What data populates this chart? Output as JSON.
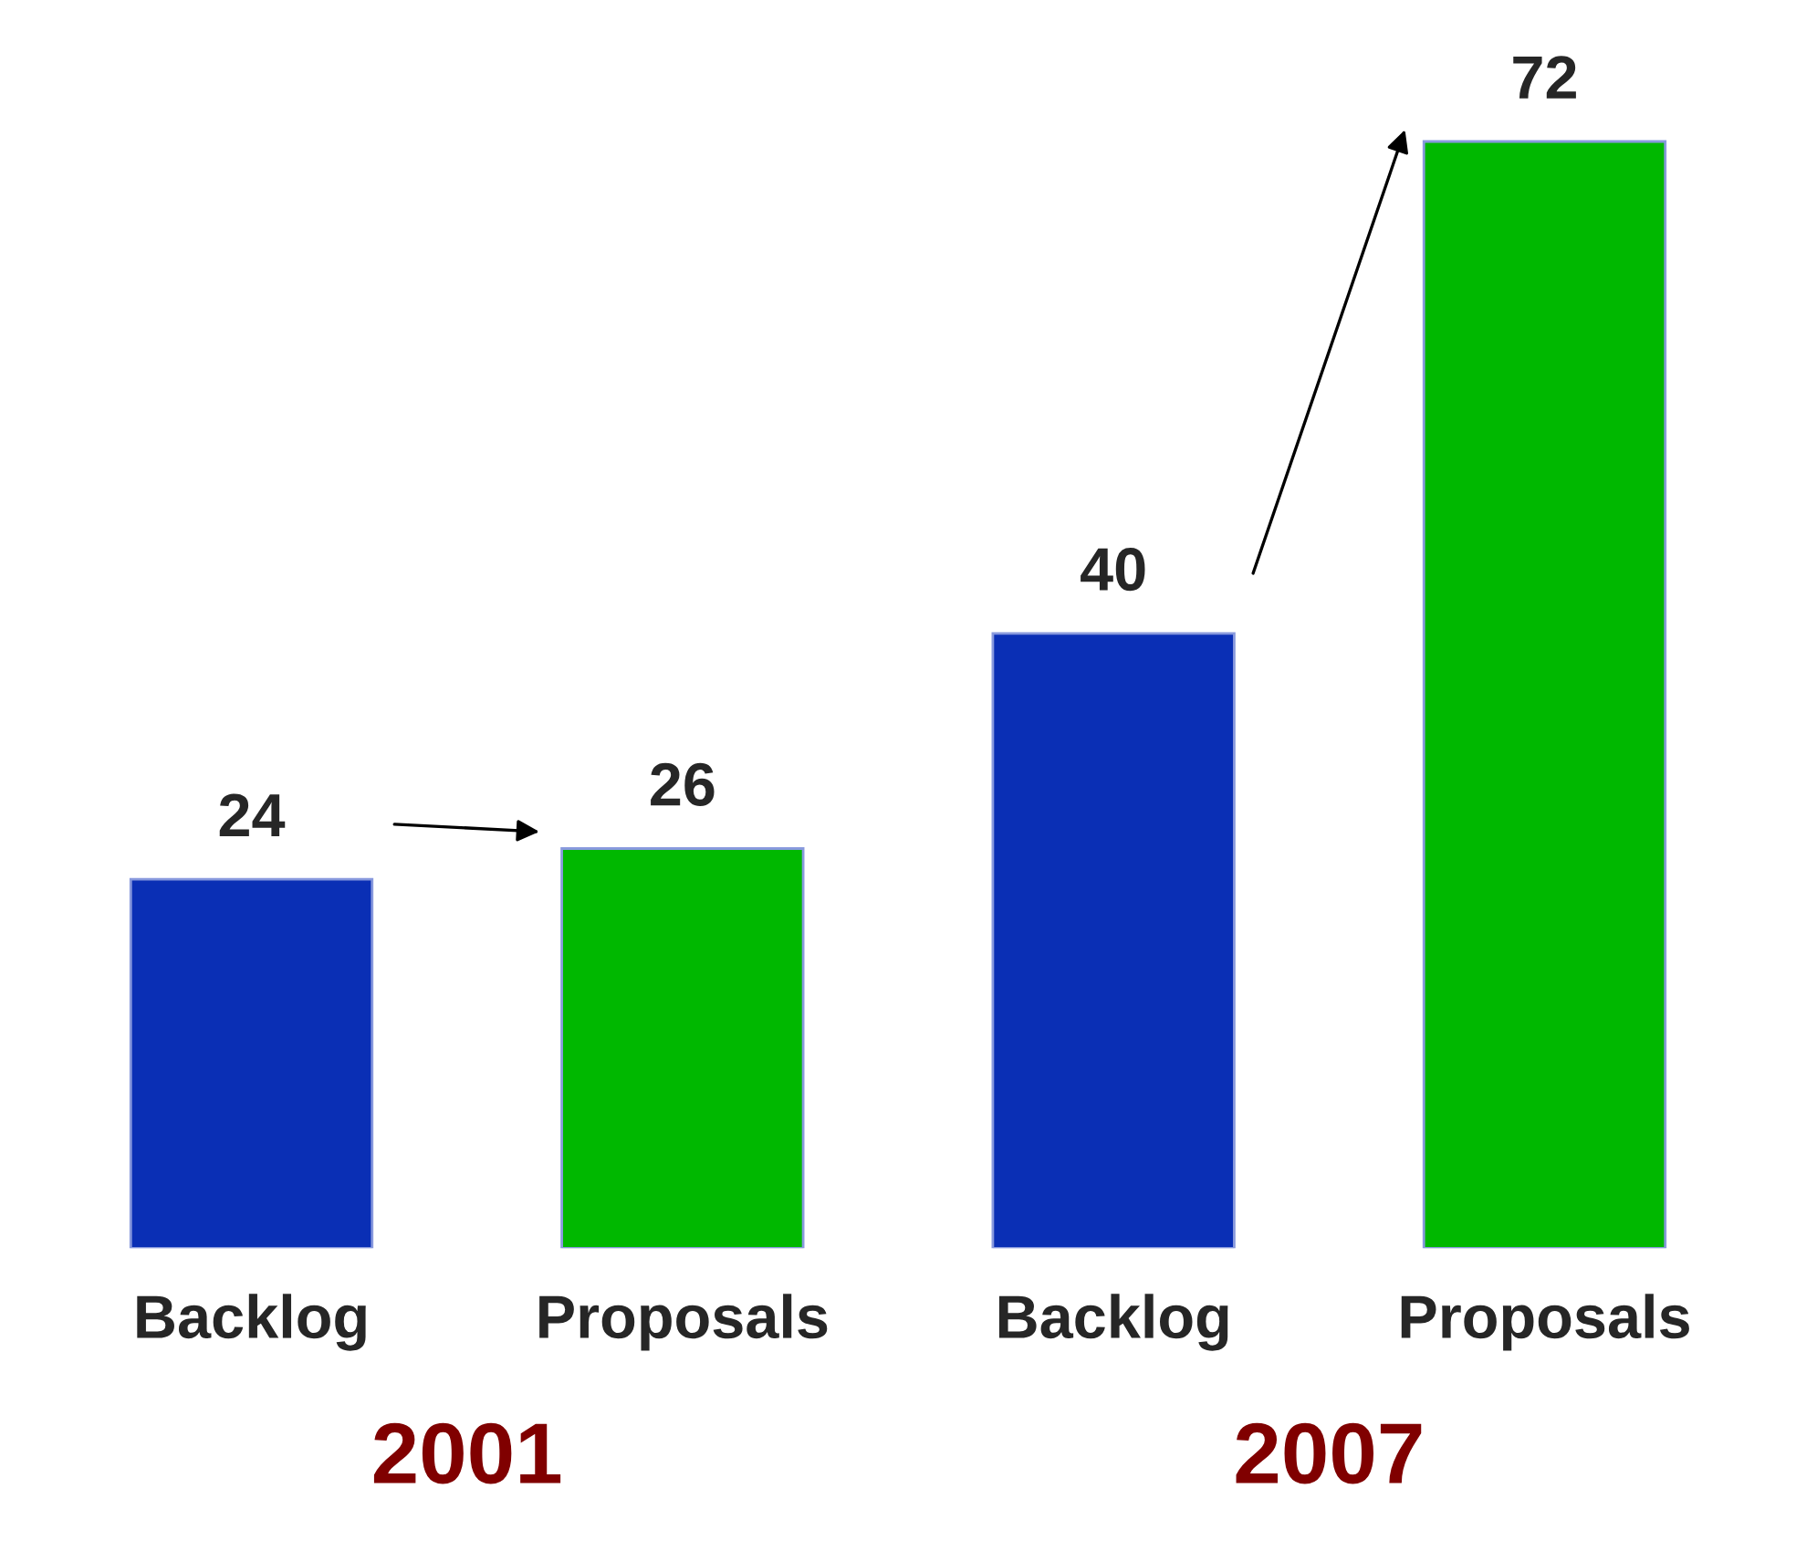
{
  "chart_data": {
    "type": "bar",
    "categories": [
      "Backlog",
      "Proposals",
      "Backlog",
      "Proposals"
    ],
    "values": [
      24,
      26,
      40,
      72
    ],
    "colors": [
      "#0a2fb5",
      "#00b800",
      "#0a2fb5",
      "#00b800"
    ],
    "data_labels": true,
    "annotations": [
      "2001",
      "2007"
    ],
    "grid": false,
    "legend": false
  }
}
